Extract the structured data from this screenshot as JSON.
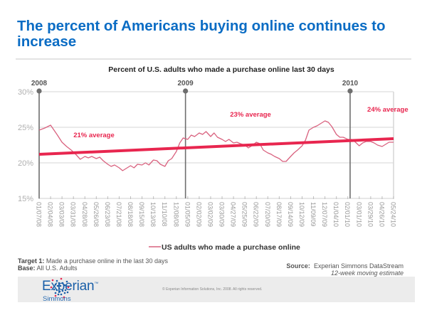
{
  "slide": {
    "title": "The percent of Americans buying online continues to increase",
    "footnotes": {
      "target_label": "Target 1:",
      "target_text": " Made a purchase online in the last 30 days",
      "base_label": "Base:",
      "base_text": " All U.S. Adults"
    },
    "source": {
      "label": "Source:",
      "text": "  Experian Simmons DataStream",
      "note": "12-week moving estimate"
    },
    "footer": {
      "logo_word": "Experian",
      "logo_tm": "™",
      "logo_sub": "Simmons",
      "copyright": "© Experian Information Solutions, Inc. 2008.  All rights reserved."
    },
    "colors": {
      "title": "#0a6cc4",
      "series": "#d9627f",
      "trend": "#e8264f",
      "annotation": "#e8264f",
      "year_marker": "#6e6e6e",
      "grid": "#d6d6d6",
      "axis_text": "#9a9a9a"
    }
  },
  "chart_data": {
    "type": "line",
    "title": "Percent of U.S. adults who made a purchase online last 30 days",
    "xlabel": "",
    "ylabel": "",
    "ylim": [
      15,
      30
    ],
    "yticks": [
      15,
      20,
      25,
      30
    ],
    "ytick_labels": [
      "15%",
      "20%",
      "25%",
      "30%"
    ],
    "grid": true,
    "legend_position": "bottom-center",
    "categories": [
      "01/07/08",
      "02/04/08",
      "03/03/08",
      "03/31/08",
      "04/28/08",
      "05/26/08",
      "06/23/08",
      "07/21/08",
      "08/18/08",
      "09/15/08",
      "10/13/08",
      "11/10/08",
      "12/08/08",
      "01/05/09",
      "02/02/09",
      "03/02/09",
      "03/30/09",
      "04/27/09",
      "05/25/09",
      "06/22/09",
      "07/20/09",
      "08/17/09",
      "09/14/09",
      "10/12/09",
      "11/09/09",
      "12/07/09",
      "01/04/10",
      "02/01/10",
      "03/01/10",
      "03/29/10",
      "04/26/10",
      "05/24/10"
    ],
    "series": [
      {
        "name": "US adults who made a purchase online",
        "x_index": [
          0,
          0.5,
          1,
          1.3,
          1.6,
          2,
          2.4,
          2.8,
          3.2,
          3.6,
          4,
          4.3,
          4.6,
          5,
          5.3,
          5.6,
          6,
          6.3,
          6.6,
          7,
          7.3,
          7.6,
          8,
          8.3,
          8.6,
          9,
          9.3,
          9.6,
          10,
          10.3,
          10.6,
          11,
          11.3,
          11.6,
          12,
          12.3,
          12.6,
          13,
          13.3,
          13.6,
          14,
          14.3,
          14.6,
          15,
          15.3,
          15.6,
          16,
          16.3,
          16.6,
          17,
          17.3,
          17.6,
          18,
          18.3,
          18.6,
          19,
          19.3,
          19.6,
          20,
          20.3,
          20.6,
          21,
          21.3,
          21.6,
          22,
          22.3,
          22.6,
          23,
          23.3,
          23.6,
          24,
          24.3,
          24.6,
          25,
          25.3,
          25.6,
          26,
          26.3,
          26.6,
          27,
          27.3,
          27.6,
          28,
          28.3,
          28.6,
          29,
          29.3,
          29.6,
          30,
          30.3,
          30.6,
          31
        ],
        "values": [
          24.6,
          24.9,
          25.3,
          24.6,
          23.9,
          22.9,
          22.3,
          21.8,
          21.2,
          20.5,
          20.9,
          20.7,
          20.9,
          20.6,
          20.8,
          20.3,
          19.8,
          19.5,
          19.7,
          19.3,
          18.9,
          19.2,
          19.6,
          19.3,
          19.8,
          19.7,
          20.0,
          19.7,
          20.4,
          20.3,
          19.8,
          19.5,
          20.3,
          20.6,
          21.6,
          22.8,
          23.5,
          23.3,
          23.9,
          23.7,
          24.2,
          24.0,
          24.4,
          23.7,
          24.2,
          23.6,
          23.3,
          23.0,
          23.3,
          22.8,
          22.9,
          22.7,
          22.5,
          22.1,
          22.4,
          22.9,
          22.7,
          21.8,
          21.4,
          21.2,
          20.9,
          20.6,
          20.2,
          20.2,
          20.9,
          21.4,
          21.8,
          22.4,
          23.2,
          24.6,
          25.0,
          25.2,
          25.5,
          25.9,
          25.7,
          25.1,
          24.0,
          23.6,
          23.6,
          23.3,
          23.3,
          23.0,
          22.4,
          22.8,
          23.0,
          23.0,
          22.8,
          22.5,
          22.3,
          22.6,
          22.9,
          22.9
        ],
        "color": "#d9627f"
      },
      {
        "name": "Trend",
        "x_index": [
          0,
          31
        ],
        "values": [
          21.2,
          23.4
        ],
        "color": "#e8264f"
      }
    ],
    "year_markers": [
      {
        "label": "2008",
        "x_index": 0
      },
      {
        "label": "2009",
        "x_index": 12.8
      },
      {
        "label": "2010",
        "x_index": 27.2
      }
    ],
    "annotations": [
      {
        "text": "21% average",
        "x_index": 3.0,
        "y": 23.6
      },
      {
        "text": "23% average",
        "x_index": 16.7,
        "y": 26.5
      },
      {
        "text": "24% average",
        "x_index": 28.7,
        "y": 27.2
      }
    ]
  }
}
